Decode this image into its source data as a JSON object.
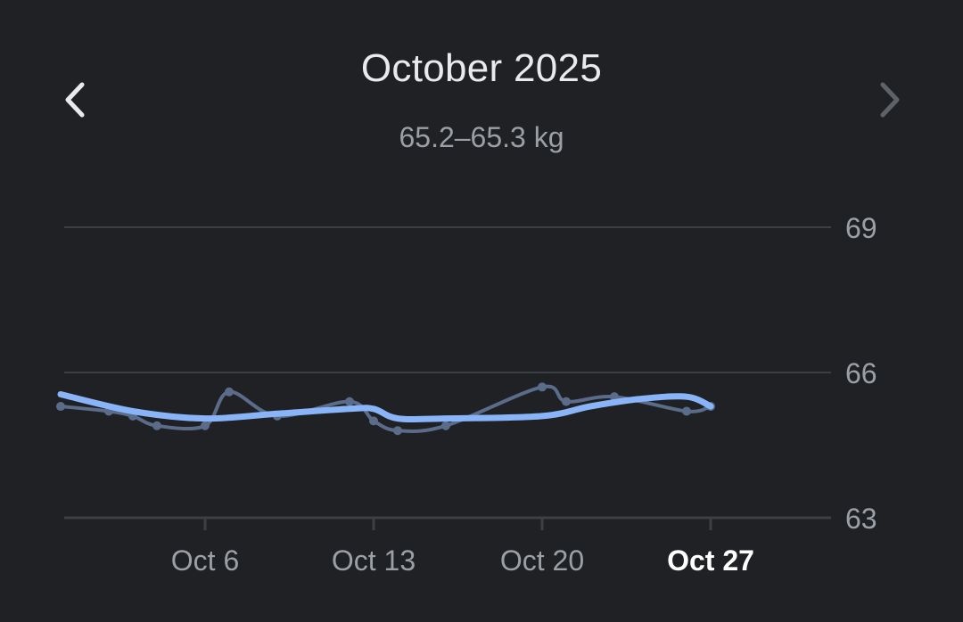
{
  "header": {
    "title": "October 2025",
    "subtitle": "65.2–65.3 kg",
    "prev_icon": "chevron-left-icon",
    "next_icon": "chevron-right-icon"
  },
  "colors": {
    "background": "#202124",
    "trend_line": "#8ab4f8",
    "raw_line": "#5b6b8a",
    "grid": "#3c4043",
    "axis_text": "#9aa0a6",
    "selected_tick": "#ffffff"
  },
  "chart_data": {
    "type": "line",
    "title": "October 2025",
    "subtitle": "65.2–65.3 kg",
    "xlabel": "",
    "ylabel": "",
    "x_range": [
      "2025-09-30",
      "2025-11-01"
    ],
    "ylim": [
      63,
      69
    ],
    "y_ticks": [
      69,
      66,
      63
    ],
    "y_axis_position": "right",
    "grid": true,
    "x_ticks": [
      {
        "date": "2025-10-06",
        "label": "Oct 6",
        "selected": false
      },
      {
        "date": "2025-10-13",
        "label": "Oct 13",
        "selected": false
      },
      {
        "date": "2025-10-20",
        "label": "Oct 20",
        "selected": false
      },
      {
        "date": "2025-10-27",
        "label": "Oct 27",
        "selected": true
      }
    ],
    "series": [
      {
        "role": "raw",
        "points": [
          {
            "date": "2025-09-30",
            "value": 65.3
          },
          {
            "date": "2025-10-02",
            "value": 65.2
          },
          {
            "date": "2025-10-03",
            "value": 65.1
          },
          {
            "date": "2025-10-04",
            "value": 64.9
          },
          {
            "date": "2025-10-06",
            "value": 64.9
          },
          {
            "date": "2025-10-07",
            "value": 65.6
          },
          {
            "date": "2025-10-09",
            "value": 65.1
          },
          {
            "date": "2025-10-12",
            "value": 65.4
          },
          {
            "date": "2025-10-13",
            "value": 65.0
          },
          {
            "date": "2025-10-14",
            "value": 64.8
          },
          {
            "date": "2025-10-16",
            "value": 64.9
          },
          {
            "date": "2025-10-20",
            "value": 65.7
          },
          {
            "date": "2025-10-21",
            "value": 65.4
          },
          {
            "date": "2025-10-23",
            "value": 65.5
          },
          {
            "date": "2025-10-26",
            "value": 65.2
          },
          {
            "date": "2025-10-27",
            "value": 65.3
          }
        ]
      },
      {
        "role": "trend",
        "points": [
          {
            "date": "2025-09-30",
            "value": 65.55
          },
          {
            "date": "2025-10-03",
            "value": 65.2
          },
          {
            "date": "2025-10-06",
            "value": 65.05
          },
          {
            "date": "2025-10-09",
            "value": 65.15
          },
          {
            "date": "2025-10-12",
            "value": 65.25
          },
          {
            "date": "2025-10-13",
            "value": 65.25
          },
          {
            "date": "2025-10-14",
            "value": 65.05
          },
          {
            "date": "2025-10-16",
            "value": 65.05
          },
          {
            "date": "2025-10-20",
            "value": 65.1
          },
          {
            "date": "2025-10-22",
            "value": 65.3
          },
          {
            "date": "2025-10-24",
            "value": 65.45
          },
          {
            "date": "2025-10-26",
            "value": 65.5
          },
          {
            "date": "2025-10-27",
            "value": 65.3
          }
        ]
      }
    ]
  }
}
